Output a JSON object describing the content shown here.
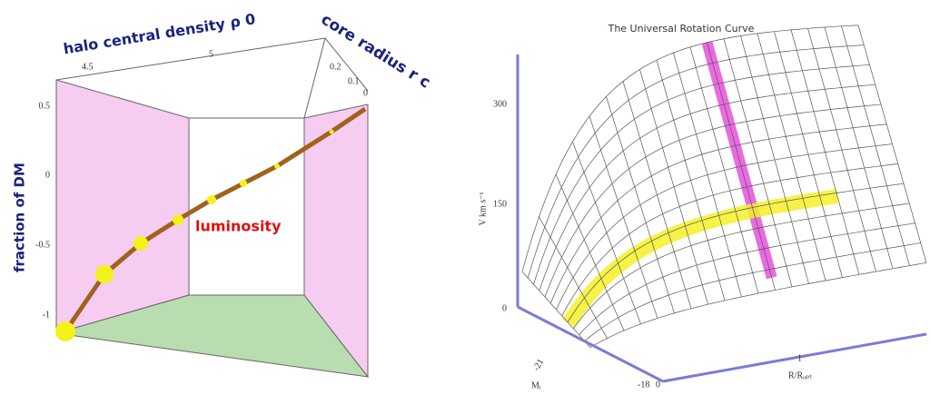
{
  "left_panel": {
    "axis_top": "halo central density ρ 0",
    "axis_top_right": "core radius r c",
    "axis_left": "fraction of DM",
    "annotation": "luminosity",
    "top_ticks": [
      "4.5",
      "5"
    ],
    "right_ticks": [
      "0.2",
      "0.1",
      "0"
    ],
    "left_ticks": [
      "0.5",
      "0",
      "-0.5",
      "-1"
    ]
  },
  "right_panel": {
    "title": "The Universal Rotation Curve",
    "y_axis_label": "V  km s⁻¹",
    "y_ticks": [
      "300",
      "150",
      "0"
    ],
    "m_ticks": [
      "-21",
      "-18"
    ],
    "m_label": "Mᵢ",
    "r_ticks": [
      "0",
      "1"
    ],
    "r_label": "R/Rₒₚₜ"
  }
}
